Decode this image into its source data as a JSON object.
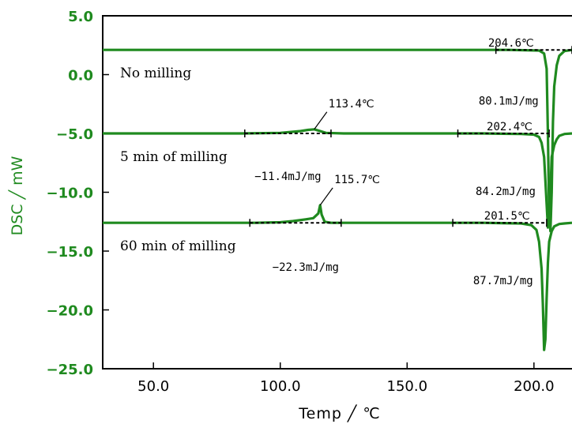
{
  "chart_data": {
    "type": "line",
    "xlabel": "Temp  ╱ ℃",
    "ylabel": "DSC  ╱ mW",
    "xlim": [
      30,
      215
    ],
    "ylim": [
      -25,
      5
    ],
    "x_ticks": [
      50.0,
      100.0,
      150.0,
      200.0
    ],
    "x_tick_labels": [
      "50.0",
      "100.0",
      "150.0",
      "200.0"
    ],
    "y_ticks": [
      5.0,
      0.0,
      -5.0,
      -10.0,
      -15.0,
      -20.0,
      -25.0
    ],
    "y_tick_labels": [
      "5.0",
      "0.0",
      "−5.0",
      "−10.0",
      "−15.0",
      "−20.0",
      "−25.0"
    ],
    "grid": false,
    "colors": {
      "curve": "#1f8a1f",
      "baseline": "#000000",
      "ytick_text": "#1f8a1f"
    },
    "series": [
      {
        "name": "No milling",
        "x": [
          30,
          100,
          150,
          190,
          202,
          204,
          205,
          205.5,
          206,
          206.5,
          207,
          207.5,
          208,
          209,
          210,
          212,
          215
        ],
        "y": [
          2.1,
          2.1,
          2.1,
          2.1,
          2.05,
          1.8,
          0.5,
          -5,
          -12,
          -13.3,
          -10,
          -4,
          -1,
          0.8,
          1.6,
          2.0,
          2.1
        ]
      },
      {
        "name": "5 min of milling",
        "x": [
          30,
          60,
          85,
          100,
          108,
          111,
          113.4,
          115,
          118,
          125,
          150,
          180,
          195,
          200,
          202,
          203,
          204,
          205,
          205.5,
          206,
          206.5,
          207,
          208,
          209,
          210,
          212,
          215
        ],
        "y": [
          -5.0,
          -5.0,
          -5.0,
          -4.95,
          -4.8,
          -4.7,
          -4.65,
          -4.75,
          -4.95,
          -5.0,
          -5.0,
          -5.0,
          -5.05,
          -5.1,
          -5.3,
          -5.8,
          -7,
          -11,
          -13,
          -12.5,
          -10,
          -7,
          -6,
          -5.5,
          -5.2,
          -5.05,
          -5.0
        ]
      },
      {
        "name": "60 min of milling",
        "x": [
          30,
          60,
          90,
          100,
          105,
          110,
          113,
          115,
          115.7,
          116.3,
          117.5,
          120,
          130,
          150,
          180,
          195,
          199,
          201,
          202,
          203,
          203.5,
          204,
          204.5,
          205,
          205.5,
          206,
          207,
          208,
          210,
          212,
          215
        ],
        "y": [
          -12.6,
          -12.6,
          -12.6,
          -12.55,
          -12.45,
          -12.3,
          -12.2,
          -11.8,
          -11.1,
          -11.9,
          -12.5,
          -12.6,
          -12.6,
          -12.6,
          -12.6,
          -12.65,
          -12.8,
          -13.2,
          -14.2,
          -16.5,
          -19.5,
          -23.4,
          -22.5,
          -19,
          -16,
          -14.2,
          -13.3,
          -12.9,
          -12.7,
          -12.65,
          -12.6
        ]
      }
    ],
    "baselines": [
      {
        "x": [
          185,
          215
        ],
        "y": [
          2.1,
          2.1
        ]
      },
      {
        "x": [
          86,
          120
        ],
        "y": [
          -5.0,
          -5.0
        ]
      },
      {
        "x": [
          170,
          206
        ],
        "y": [
          -5.0,
          -5.0
        ]
      },
      {
        "x": [
          88,
          124
        ],
        "y": [
          -12.6,
          -12.6
        ]
      },
      {
        "x": [
          168,
          205
        ],
        "y": [
          -12.6,
          -12.6
        ]
      }
    ],
    "curve_labels": [
      "No milling",
      "5 min of milling",
      "60 min of milling"
    ],
    "annotations": [
      {
        "text": "204.6℃",
        "x": 206.2,
        "y": 2.1
      },
      {
        "text": "80.1mJ/mg",
        "x": 206.2,
        "y": 0.0
      },
      {
        "text": "113.4℃",
        "x": 113.4,
        "y": -4.65
      },
      {
        "text": "−11.4mJ/mg",
        "x": 103,
        "y": -6.4
      },
      {
        "text": "202.4℃",
        "x": 205.0,
        "y": -5.0
      },
      {
        "text": "84.2mJ/mg",
        "x": 205.0,
        "y": -7.2
      },
      {
        "text": "115.7℃",
        "x": 115.7,
        "y": -11.1
      },
      {
        "text": "−22.3mJ/mg",
        "x": 110,
        "y": -14.0
      },
      {
        "text": "201.5℃",
        "x": 204.0,
        "y": -12.6
      },
      {
        "text": "87.7mJ/mg",
        "x": 204.0,
        "y": -14.8
      }
    ]
  }
}
